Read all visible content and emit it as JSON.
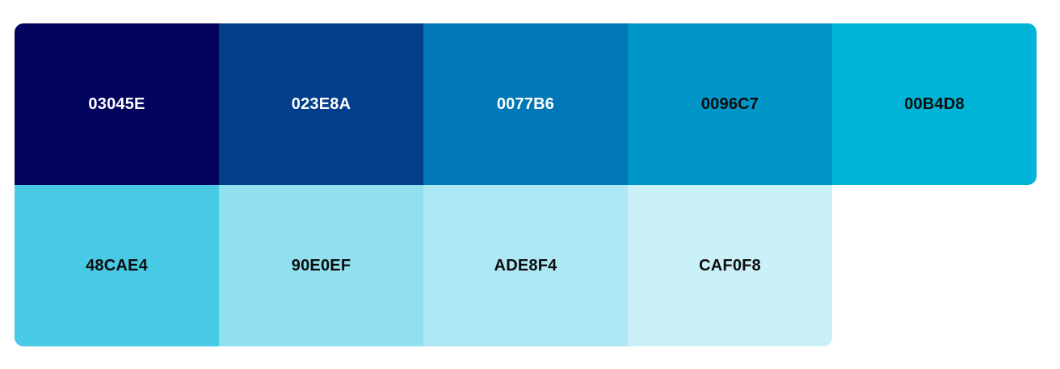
{
  "palette": {
    "rows": [
      [
        {
          "hex": "03045E",
          "color": "#03045E",
          "text": "light"
        },
        {
          "hex": "023E8A",
          "color": "#023E8A",
          "text": "light"
        },
        {
          "hex": "0077B6",
          "color": "#0077B6",
          "text": "light"
        },
        {
          "hex": "0096C7",
          "color": "#0096C7",
          "text": "dark"
        },
        {
          "hex": "00B4D8",
          "color": "#00B4D8",
          "text": "dark"
        }
      ],
      [
        {
          "hex": "48CAE4",
          "color": "#48CAE4",
          "text": "dark"
        },
        {
          "hex": "90E0EF",
          "color": "#90E0EF",
          "text": "dark"
        },
        {
          "hex": "ADE8F4",
          "color": "#ADE8F4",
          "text": "dark"
        },
        {
          "hex": "CAF0F8",
          "color": "#CAF0F8",
          "text": "dark"
        }
      ]
    ]
  }
}
